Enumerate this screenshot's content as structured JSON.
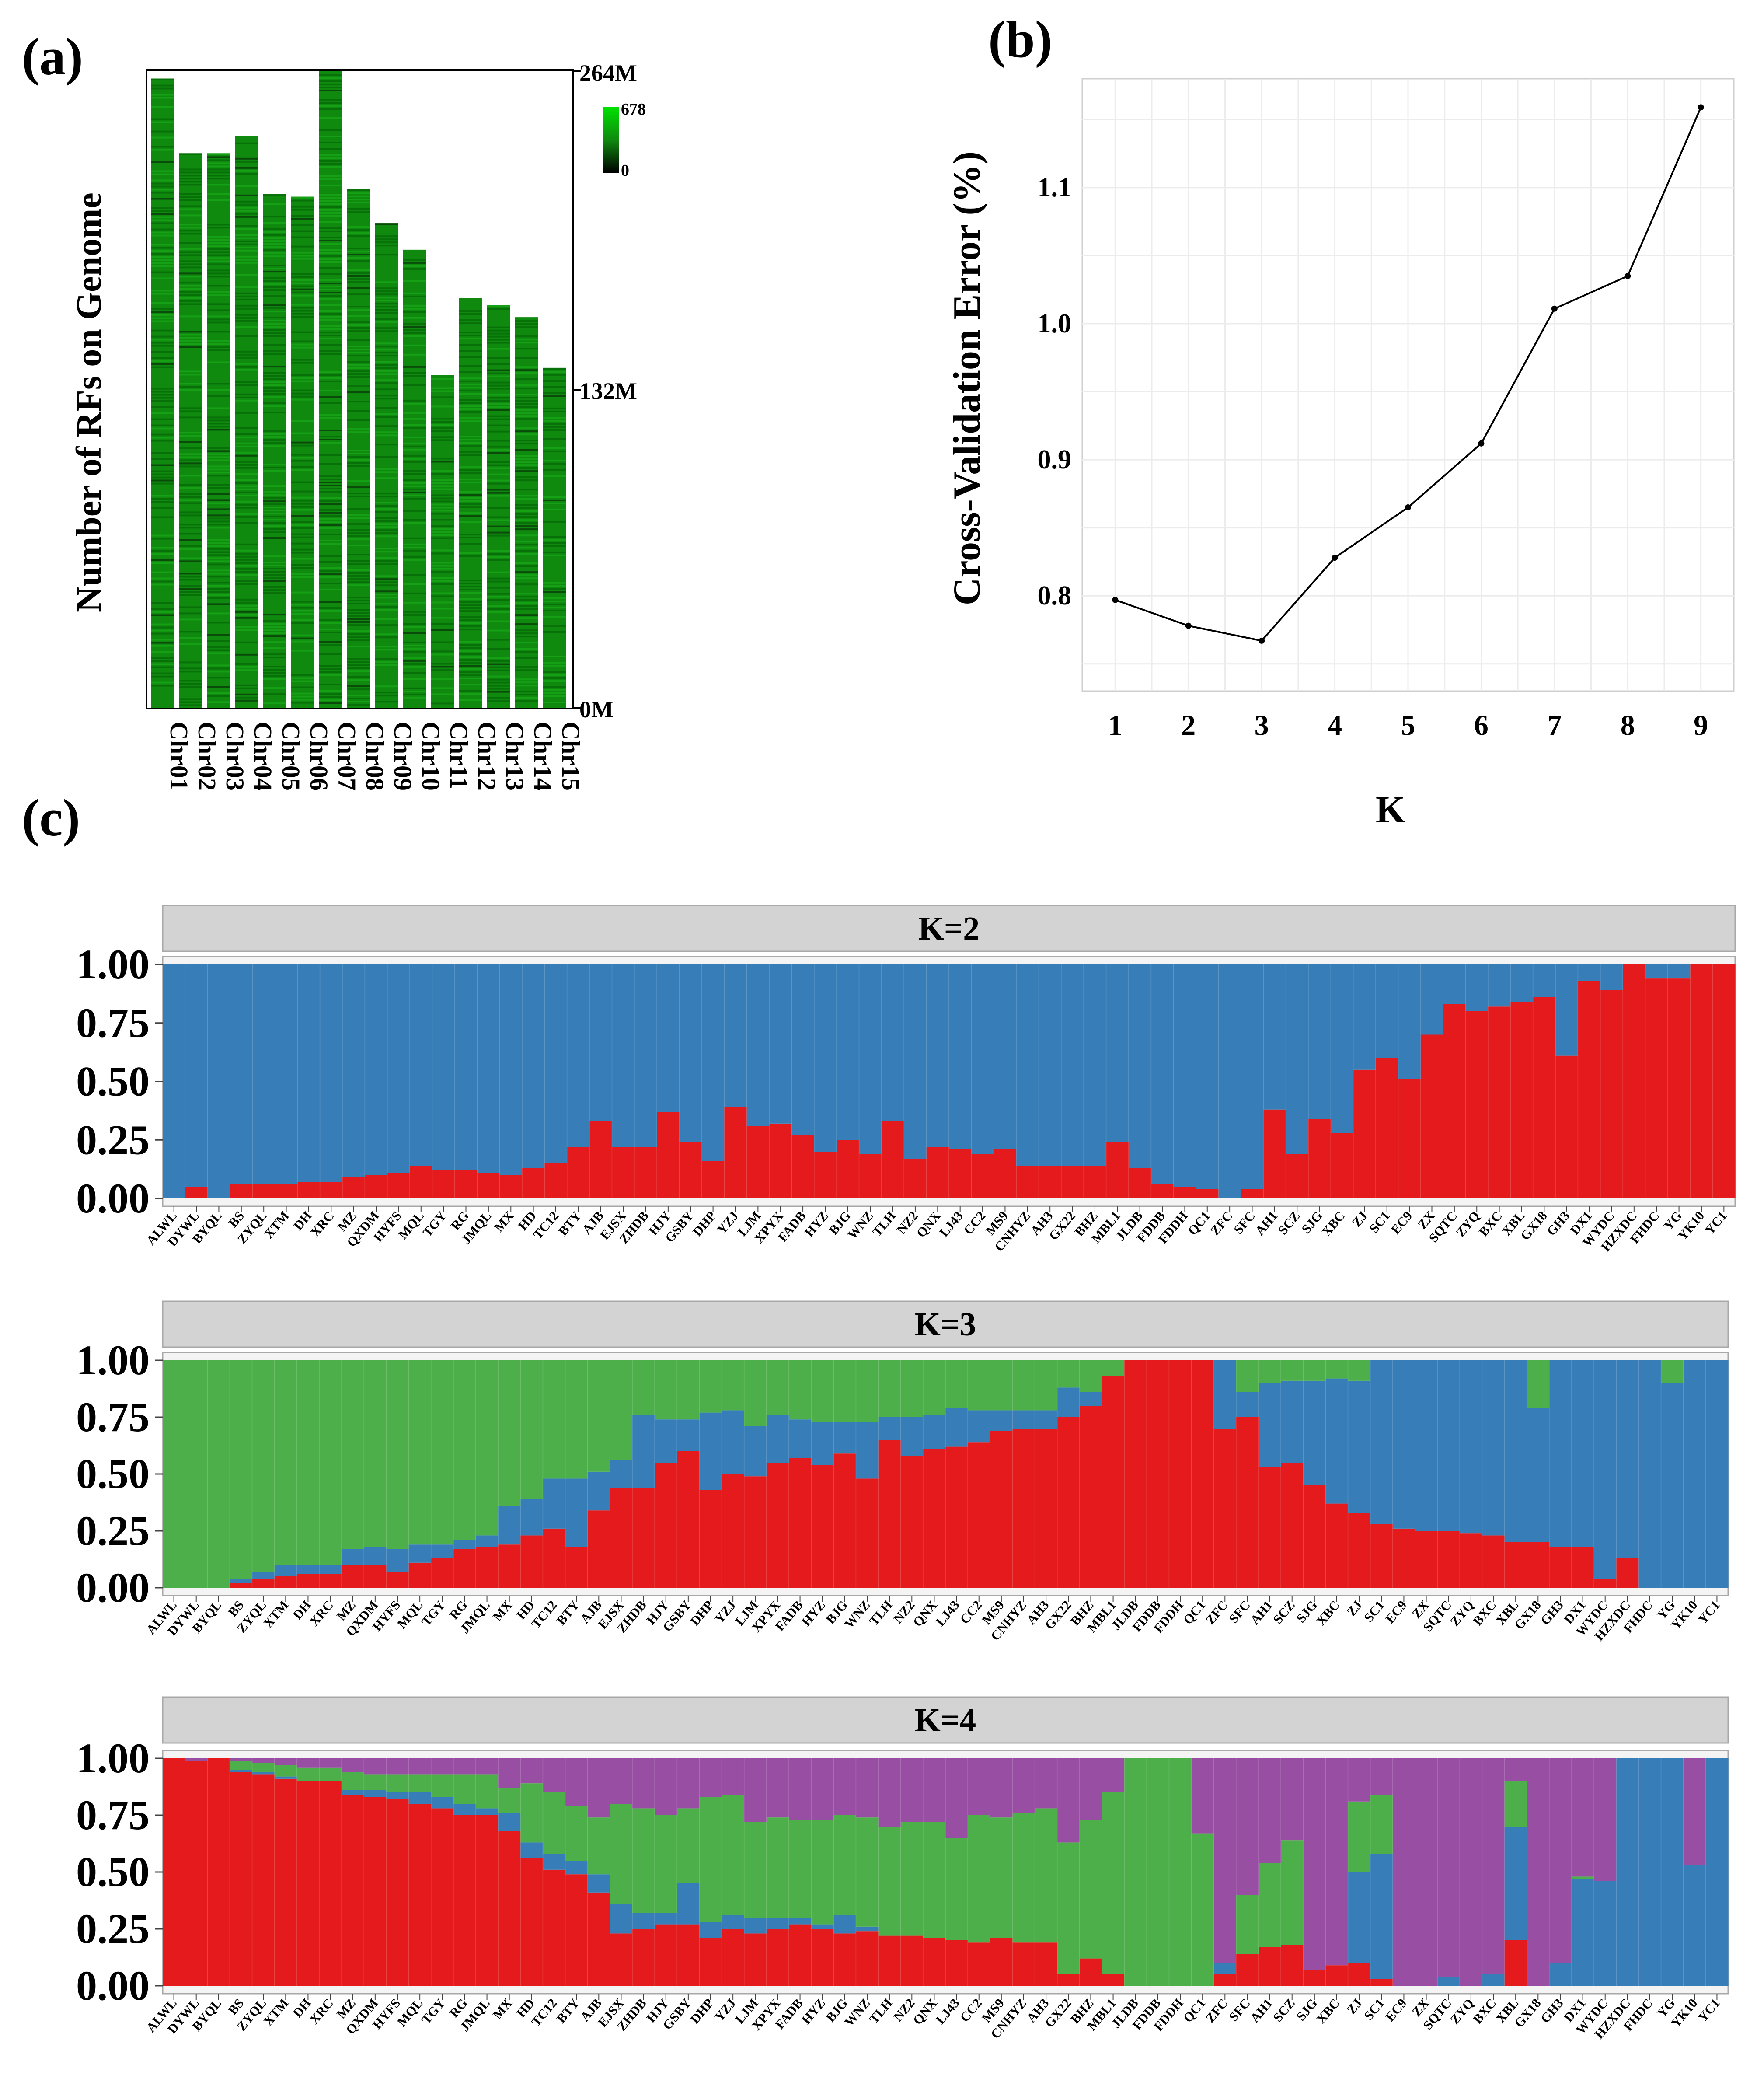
{
  "panel_labels": {
    "a": "(a)",
    "b": "(b)",
    "c": "(c)"
  },
  "colors": {
    "red": "#e41a1c",
    "blue": "#377eb8",
    "green": "#4daf4a",
    "purple": "#984ea3",
    "density_high": "#00e000",
    "density_mid": "#0f8a0f",
    "density_low": "#000000",
    "strip_bg": "#d3d3d3",
    "grid": "#ececec"
  },
  "panel_a": {
    "ylabel": "Number of RFs on Genome",
    "right_ticks": [
      "264M",
      "132M",
      "0M"
    ],
    "legend": {
      "max": "678",
      "min": "0"
    },
    "chart_data": {
      "type": "heatmap",
      "categories": [
        "Chr01",
        "Chr02",
        "Chr03",
        "Chr04",
        "Chr05",
        "Chr06",
        "Chr07",
        "Chr08",
        "Chr09",
        "Chr10",
        "Chr11",
        "Chr12",
        "Chr13",
        "Chr14",
        "Chr15"
      ],
      "lengths_M": [
        261,
        230,
        230,
        237,
        213,
        212,
        264,
        215,
        201,
        190,
        138,
        170,
        167,
        162,
        141
      ],
      "ylim": [
        0,
        264
      ]
    }
  },
  "panel_b": {
    "ylabel": "Cross-Validation Error (%)",
    "xlabel": "K",
    "chart_data": {
      "type": "line",
      "x": [
        1,
        2,
        3,
        4,
        5,
        6,
        7,
        8,
        9
      ],
      "y": [
        0.797,
        0.778,
        0.767,
        0.828,
        0.865,
        0.912,
        1.011,
        1.035,
        1.159
      ],
      "xticks": [
        "1",
        "2",
        "3",
        "4",
        "5",
        "6",
        "7",
        "8",
        "9"
      ],
      "yticks": [
        "0.8",
        "0.9",
        "1.0",
        "1.1"
      ],
      "ylim": [
        0.73,
        1.18
      ],
      "xlim": [
        0.55,
        9.45
      ],
      "grid": true
    }
  },
  "panel_c": {
    "yticks": [
      "1.00",
      "0.75",
      "0.50",
      "0.25",
      "0.00"
    ],
    "samples": [
      "ALWL",
      "DYWL",
      "BYQL",
      "BS",
      "ZYQL",
      "XTM",
      "DH",
      "XRC",
      "MZ",
      "QXDM",
      "HYFS",
      "MQL",
      "TGY",
      "RG",
      "JMQL",
      "MX",
      "HD",
      "TC12",
      "BTY",
      "AJB",
      "EJSX",
      "ZHDB",
      "HJY",
      "GSBY",
      "DHP",
      "YZJ",
      "LJM",
      "XPYX",
      "FADB",
      "HYZ",
      "BJG",
      "WNZ",
      "TLH",
      "NZ2",
      "QNX",
      "LJ43",
      "CC2",
      "MS9",
      "CNHYZ",
      "AH3",
      "GX22",
      "BHZ",
      "MBL1",
      "JLDB",
      "FDDB",
      "FDDH",
      "QC1",
      "ZFC",
      "SFC",
      "AH1",
      "SCZ",
      "SJG",
      "XBC",
      "ZJ",
      "SC1",
      "EC9",
      "ZX",
      "SQTC",
      "ZYQ",
      "BXC",
      "XBL",
      "GX18",
      "GH3",
      "DX1",
      "WYDC",
      "HZXDC",
      "FHDC",
      "YG",
      "YK10",
      "YC1"
    ],
    "chart_data": [
      {
        "type": "bar",
        "title": "K=2",
        "stacked": true,
        "ylim": [
          0,
          1
        ],
        "series": [
          {
            "color": "red",
            "values": [
              0.0,
              0.05,
              0.0,
              0.06,
              0.06,
              0.06,
              0.07,
              0.07,
              0.09,
              0.1,
              0.11,
              0.14,
              0.12,
              0.12,
              0.11,
              0.1,
              0.13,
              0.15,
              0.22,
              0.33,
              0.22,
              0.22,
              0.37,
              0.24,
              0.16,
              0.39,
              0.31,
              0.32,
              0.27,
              0.2,
              0.25,
              0.19,
              0.33,
              0.17,
              0.22,
              0.21,
              0.19,
              0.21,
              0.14,
              0.14,
              0.14,
              0.14,
              0.24,
              0.13,
              0.06,
              0.05,
              0.04,
              0.0,
              0.04,
              0.38,
              0.19,
              0.34,
              0.28,
              0.55,
              0.6,
              0.51,
              0.7,
              0.83,
              0.8,
              0.82,
              0.84,
              0.86,
              0.61,
              0.93,
              0.89,
              1.0,
              0.94,
              0.94,
              1.0,
              1.0
            ]
          },
          {
            "color": "blue",
            "values": [
              1.0,
              0.95,
              1.0,
              0.94,
              0.94,
              0.94,
              0.93,
              0.93,
              0.91,
              0.9,
              0.89,
              0.86,
              0.88,
              0.88,
              0.89,
              0.9,
              0.87,
              0.85,
              0.78,
              0.67,
              0.78,
              0.78,
              0.63,
              0.76,
              0.84,
              0.61,
              0.69,
              0.68,
              0.73,
              0.8,
              0.75,
              0.81,
              0.67,
              0.83,
              0.78,
              0.79,
              0.81,
              0.79,
              0.86,
              0.86,
              0.86,
              0.86,
              0.76,
              0.87,
              0.94,
              0.95,
              0.96,
              1.0,
              0.96,
              0.62,
              0.81,
              0.66,
              0.72,
              0.45,
              0.4,
              0.49,
              0.3,
              0.17,
              0.2,
              0.18,
              0.16,
              0.14,
              0.39,
              0.07,
              0.11,
              0.0,
              0.06,
              0.06,
              0.0,
              0.0
            ]
          }
        ]
      },
      {
        "type": "bar",
        "title": "K=3",
        "stacked": true,
        "ylim": [
          0,
          1
        ],
        "series": [
          {
            "color": "red",
            "values": [
              0.0,
              0.0,
              0.0,
              0.02,
              0.04,
              0.05,
              0.06,
              0.06,
              0.1,
              0.1,
              0.07,
              0.11,
              0.13,
              0.17,
              0.18,
              0.19,
              0.23,
              0.26,
              0.18,
              0.34,
              0.44,
              0.44,
              0.55,
              0.6,
              0.43,
              0.5,
              0.49,
              0.55,
              0.57,
              0.54,
              0.59,
              0.48,
              0.65,
              0.58,
              0.61,
              0.62,
              0.64,
              0.69,
              0.7,
              0.7,
              0.75,
              0.8,
              0.93,
              1.0,
              1.0,
              1.0,
              1.0,
              0.7,
              0.75,
              0.53,
              0.55,
              0.45,
              0.37,
              0.33,
              0.28,
              0.26,
              0.25,
              0.25,
              0.24,
              0.23,
              0.2,
              0.2,
              0.18,
              0.18,
              0.04,
              0.13,
              0.0,
              0.0,
              0.0,
              0.0
            ]
          },
          {
            "color": "blue",
            "values": [
              0.0,
              0.0,
              0.0,
              0.02,
              0.03,
              0.05,
              0.04,
              0.04,
              0.07,
              0.08,
              0.1,
              0.08,
              0.06,
              0.04,
              0.05,
              0.17,
              0.16,
              0.22,
              0.3,
              0.17,
              0.12,
              0.32,
              0.19,
              0.14,
              0.34,
              0.28,
              0.22,
              0.21,
              0.17,
              0.19,
              0.14,
              0.25,
              0.1,
              0.17,
              0.15,
              0.17,
              0.14,
              0.09,
              0.08,
              0.08,
              0.13,
              0.06,
              0.0,
              0.0,
              0.0,
              0.0,
              0.0,
              0.3,
              0.11,
              0.37,
              0.36,
              0.46,
              0.55,
              0.58,
              0.72,
              0.74,
              0.75,
              0.75,
              0.76,
              0.77,
              0.8,
              0.59,
              0.82,
              0.82,
              0.96,
              0.87,
              1.0,
              0.9,
              1.0,
              1.0
            ]
          },
          {
            "color": "green",
            "values": [
              1.0,
              1.0,
              1.0,
              0.96,
              0.93,
              0.9,
              0.9,
              0.9,
              0.83,
              0.82,
              0.83,
              0.81,
              0.81,
              0.79,
              0.77,
              0.64,
              0.61,
              0.52,
              0.52,
              0.49,
              0.44,
              0.24,
              0.26,
              0.26,
              0.23,
              0.22,
              0.29,
              0.24,
              0.26,
              0.27,
              0.27,
              0.27,
              0.25,
              0.25,
              0.24,
              0.21,
              0.22,
              0.22,
              0.22,
              0.22,
              0.12,
              0.14,
              0.07,
              0.0,
              0.0,
              0.0,
              0.0,
              0.0,
              0.14,
              0.1,
              0.09,
              0.09,
              0.08,
              0.09,
              0.0,
              0.0,
              0.0,
              0.0,
              0.0,
              0.0,
              0.0,
              0.21,
              0.0,
              0.0,
              0.0,
              0.0,
              0.0,
              0.1,
              0.0,
              0.0
            ]
          }
        ]
      },
      {
        "type": "bar",
        "title": "K=4",
        "stacked": true,
        "ylim": [
          0,
          1
        ],
        "series": [
          {
            "color": "red",
            "values": [
              1.0,
              0.99,
              1.0,
              0.94,
              0.93,
              0.91,
              0.9,
              0.9,
              0.84,
              0.83,
              0.82,
              0.8,
              0.78,
              0.75,
              0.75,
              0.68,
              0.56,
              0.51,
              0.49,
              0.41,
              0.23,
              0.25,
              0.27,
              0.27,
              0.21,
              0.25,
              0.23,
              0.25,
              0.27,
              0.25,
              0.23,
              0.24,
              0.22,
              0.22,
              0.21,
              0.2,
              0.19,
              0.21,
              0.19,
              0.19,
              0.05,
              0.12,
              0.05,
              0.0,
              0.0,
              0.0,
              0.0,
              0.05,
              0.14,
              0.17,
              0.18,
              0.07,
              0.09,
              0.1,
              0.03,
              0.0,
              0.0,
              0.0,
              0.0,
              0.0,
              0.2,
              0.0,
              0.0,
              0.0,
              0.0,
              0.0,
              0.0,
              0.0,
              0.0,
              0.0
            ]
          },
          {
            "color": "blue",
            "values": [
              0.0,
              0.0,
              0.0,
              0.01,
              0.01,
              0.01,
              0.0,
              0.0,
              0.02,
              0.03,
              0.03,
              0.05,
              0.05,
              0.05,
              0.03,
              0.08,
              0.07,
              0.07,
              0.06,
              0.08,
              0.13,
              0.07,
              0.05,
              0.18,
              0.07,
              0.06,
              0.07,
              0.05,
              0.03,
              0.02,
              0.08,
              0.02,
              0.0,
              0.0,
              0.0,
              0.0,
              0.0,
              0.0,
              0.0,
              0.0,
              0.0,
              0.0,
              0.0,
              0.0,
              0.0,
              0.0,
              0.0,
              0.05,
              0.0,
              0.0,
              0.0,
              0.0,
              0.0,
              0.4,
              0.55,
              0.0,
              0.0,
              0.04,
              0.0,
              0.05,
              0.5,
              0.0,
              0.1,
              0.47,
              0.46,
              1.0,
              1.0,
              1.0,
              0.53,
              1.0
            ]
          },
          {
            "color": "green",
            "values": [
              0.0,
              0.0,
              0.0,
              0.04,
              0.04,
              0.05,
              0.06,
              0.06,
              0.08,
              0.07,
              0.08,
              0.08,
              0.1,
              0.13,
              0.15,
              0.11,
              0.26,
              0.27,
              0.24,
              0.25,
              0.44,
              0.46,
              0.43,
              0.33,
              0.55,
              0.53,
              0.42,
              0.44,
              0.43,
              0.46,
              0.44,
              0.48,
              0.48,
              0.5,
              0.51,
              0.45,
              0.56,
              0.53,
              0.57,
              0.59,
              0.58,
              0.61,
              0.8,
              1.0,
              1.0,
              1.0,
              0.67,
              0.0,
              0.26,
              0.37,
              0.46,
              0.0,
              0.0,
              0.31,
              0.26,
              0.0,
              0.0,
              0.0,
              0.0,
              0.0,
              0.2,
              0.0,
              0.0,
              0.01,
              0.0,
              0.0,
              0.0,
              0.0,
              0.0,
              0.0
            ]
          },
          {
            "color": "purple",
            "values": [
              0.0,
              0.01,
              0.0,
              0.01,
              0.02,
              0.03,
              0.04,
              0.04,
              0.06,
              0.07,
              0.07,
              0.07,
              0.07,
              0.07,
              0.07,
              0.13,
              0.11,
              0.15,
              0.21,
              0.26,
              0.2,
              0.22,
              0.25,
              0.22,
              0.17,
              0.16,
              0.28,
              0.26,
              0.27,
              0.27,
              0.25,
              0.26,
              0.3,
              0.28,
              0.28,
              0.35,
              0.25,
              0.26,
              0.24,
              0.22,
              0.37,
              0.27,
              0.15,
              0.0,
              0.0,
              0.0,
              0.33,
              0.9,
              0.6,
              0.46,
              0.36,
              0.93,
              0.91,
              0.19,
              0.16,
              1.0,
              1.0,
              0.96,
              1.0,
              0.95,
              0.1,
              1.0,
              0.9,
              0.52,
              0.54,
              0.0,
              0.0,
              0.0,
              0.47,
              0.0
            ]
          }
        ]
      }
    ]
  }
}
